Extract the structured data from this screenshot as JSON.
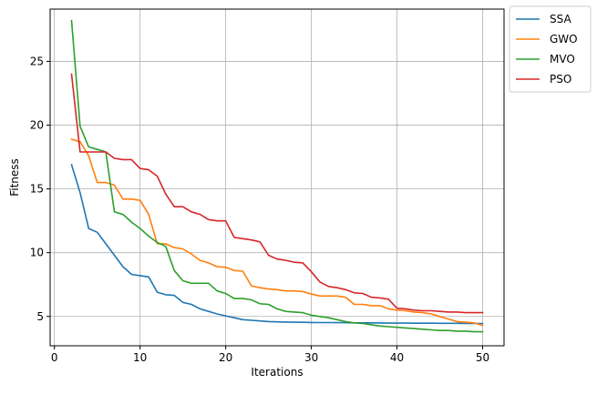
{
  "chart_data": {
    "type": "line",
    "xlabel": "Iterations",
    "ylabel": "Fitness",
    "xlim": [
      -0.5,
      52.5
    ],
    "ylim": [
      2.7,
      29.1
    ],
    "xticks": [
      0,
      10,
      20,
      30,
      40,
      50
    ],
    "yticks": [
      5,
      10,
      15,
      20,
      25
    ],
    "grid": true,
    "legend_position": "outside-top-right",
    "x": [
      2,
      3,
      4,
      5,
      6,
      7,
      8,
      9,
      10,
      11,
      12,
      13,
      14,
      15,
      16,
      17,
      18,
      19,
      20,
      21,
      22,
      23,
      24,
      25,
      26,
      27,
      28,
      29,
      30,
      31,
      32,
      33,
      34,
      35,
      36,
      37,
      38,
      39,
      40,
      41,
      42,
      43,
      44,
      45,
      46,
      47,
      48,
      49,
      50
    ],
    "series": [
      {
        "name": "SSA",
        "color": "#1f77b4",
        "values": [
          16.9,
          14.7,
          11.9,
          11.6,
          10.7,
          9.8,
          8.9,
          8.3,
          8.2,
          8.1,
          6.9,
          6.7,
          6.65,
          6.1,
          5.95,
          5.6,
          5.4,
          5.2,
          5.05,
          4.9,
          4.75,
          4.7,
          4.65,
          4.6,
          4.58,
          4.56,
          4.55,
          4.54,
          4.53,
          4.52,
          4.52,
          4.51,
          4.51,
          4.5,
          4.5,
          4.5,
          4.49,
          4.48,
          4.48,
          4.48,
          4.47,
          4.47,
          4.47,
          4.46,
          4.46,
          4.46,
          4.45,
          4.45,
          4.45
        ]
      },
      {
        "name": "GWO",
        "color": "#ff7f0e",
        "values": [
          18.9,
          18.7,
          17.6,
          15.5,
          15.5,
          15.3,
          14.2,
          14.2,
          14.1,
          13.0,
          10.7,
          10.7,
          10.4,
          10.3,
          9.9,
          9.4,
          9.2,
          8.9,
          8.85,
          8.6,
          8.55,
          7.4,
          7.25,
          7.15,
          7.1,
          7.0,
          7.0,
          6.95,
          6.75,
          6.6,
          6.6,
          6.6,
          6.5,
          5.95,
          5.95,
          5.85,
          5.85,
          5.6,
          5.5,
          5.45,
          5.35,
          5.3,
          5.2,
          5.0,
          4.8,
          4.6,
          4.55,
          4.5,
          4.3
        ]
      },
      {
        "name": "MVO",
        "color": "#2ca02c",
        "values": [
          28.2,
          19.9,
          18.3,
          18.1,
          17.9,
          13.2,
          13.0,
          12.4,
          11.9,
          11.3,
          10.8,
          10.5,
          8.6,
          7.8,
          7.6,
          7.6,
          7.6,
          7.0,
          6.8,
          6.4,
          6.4,
          6.3,
          6.0,
          5.95,
          5.6,
          5.4,
          5.35,
          5.3,
          5.1,
          5.0,
          4.9,
          4.75,
          4.6,
          4.5,
          4.45,
          4.35,
          4.25,
          4.2,
          4.15,
          4.1,
          4.05,
          4.0,
          3.95,
          3.9,
          3.9,
          3.85,
          3.85,
          3.8,
          3.8
        ]
      },
      {
        "name": "PSO",
        "color": "#d62728",
        "values": [
          24.0,
          17.9,
          17.9,
          17.9,
          17.9,
          17.4,
          17.3,
          17.3,
          16.6,
          16.5,
          16.0,
          14.6,
          13.6,
          13.6,
          13.2,
          13.0,
          12.6,
          12.5,
          12.5,
          11.2,
          11.1,
          11.0,
          10.85,
          9.8,
          9.5,
          9.4,
          9.25,
          9.2,
          8.5,
          7.7,
          7.35,
          7.25,
          7.1,
          6.85,
          6.8,
          6.5,
          6.45,
          6.35,
          5.65,
          5.6,
          5.5,
          5.45,
          5.45,
          5.4,
          5.35,
          5.35,
          5.3,
          5.3,
          5.3
        ]
      }
    ]
  }
}
